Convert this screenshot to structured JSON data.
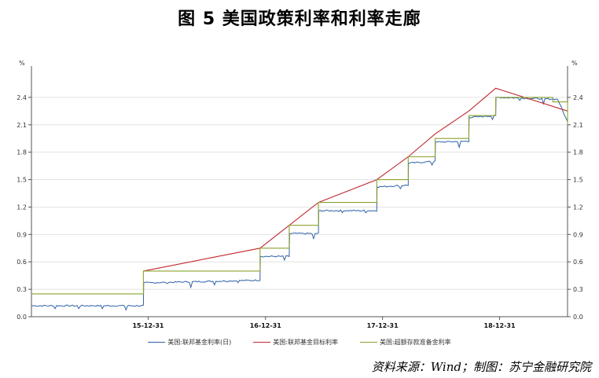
{
  "title": "图 5  美国政策利率和利率走廊",
  "source": "资料来源：Wind；制图：苏宁金融研究院",
  "chart_data": {
    "type": "line",
    "y_unit_left": "%",
    "y_unit_right": "%",
    "ylim": [
      0,
      2.7
    ],
    "yticks": [
      "0.0",
      "0.3",
      "0.6",
      "0.9",
      "1.2",
      "1.5",
      "1.8",
      "2.1",
      "2.4"
    ],
    "xlim": [
      "2015-01-01",
      "2019-07-31"
    ],
    "xticks": [
      {
        "date": "2015-12-31",
        "label": "15-12-31"
      },
      {
        "date": "2016-12-31",
        "label": "16-12-31"
      },
      {
        "date": "2017-12-31",
        "label": "17-12-31"
      },
      {
        "date": "2018-12-31",
        "label": "18-12-31"
      }
    ],
    "grid": true,
    "legend_position": "bottom",
    "series": [
      {
        "name": "美国:联邦基金利率(日)",
        "color": "#2e62a8",
        "style": "noisy-step",
        "points": [
          [
            "2015-01-01",
            0.12
          ],
          [
            "2015-12-16",
            0.12
          ],
          [
            "2015-12-17",
            0.37
          ],
          [
            "2016-12-14",
            0.4
          ],
          [
            "2016-12-15",
            0.66
          ],
          [
            "2017-03-15",
            0.66
          ],
          [
            "2017-03-16",
            0.91
          ],
          [
            "2017-06-14",
            0.91
          ],
          [
            "2017-06-15",
            1.16
          ],
          [
            "2017-12-13",
            1.16
          ],
          [
            "2017-12-14",
            1.42
          ],
          [
            "2018-03-21",
            1.44
          ],
          [
            "2018-03-22",
            1.68
          ],
          [
            "2018-06-13",
            1.7
          ],
          [
            "2018-06-14",
            1.91
          ],
          [
            "2018-09-26",
            1.92
          ],
          [
            "2018-09-27",
            2.18
          ],
          [
            "2018-12-19",
            2.2
          ],
          [
            "2018-12-20",
            2.4
          ],
          [
            "2019-06-30",
            2.38
          ],
          [
            "2019-07-31",
            2.13
          ]
        ]
      },
      {
        "name": "美国:联邦基金目标利率",
        "color": "#c0282d",
        "style": "line",
        "points": [
          [
            "2015-12-16",
            0.5
          ],
          [
            "2016-12-14",
            0.75
          ],
          [
            "2017-03-15",
            1.0
          ],
          [
            "2017-06-14",
            1.25
          ],
          [
            "2017-12-13",
            1.5
          ],
          [
            "2018-03-21",
            1.75
          ],
          [
            "2018-06-13",
            2.0
          ],
          [
            "2018-09-26",
            2.25
          ],
          [
            "2018-12-19",
            2.5
          ],
          [
            "2019-07-31",
            2.25
          ]
        ]
      },
      {
        "name": "美国:超额存款准备金利率",
        "color": "#8aa32d",
        "style": "step",
        "points": [
          [
            "2015-01-01",
            0.25
          ],
          [
            "2015-12-16",
            0.5
          ],
          [
            "2016-12-14",
            0.75
          ],
          [
            "2017-03-15",
            1.0
          ],
          [
            "2017-06-14",
            1.25
          ],
          [
            "2017-12-13",
            1.5
          ],
          [
            "2018-03-21",
            1.75
          ],
          [
            "2018-06-13",
            1.95
          ],
          [
            "2018-09-26",
            2.2
          ],
          [
            "2018-12-19",
            2.4
          ],
          [
            "2019-06-15",
            2.35
          ],
          [
            "2019-07-31",
            2.1
          ]
        ]
      }
    ]
  }
}
